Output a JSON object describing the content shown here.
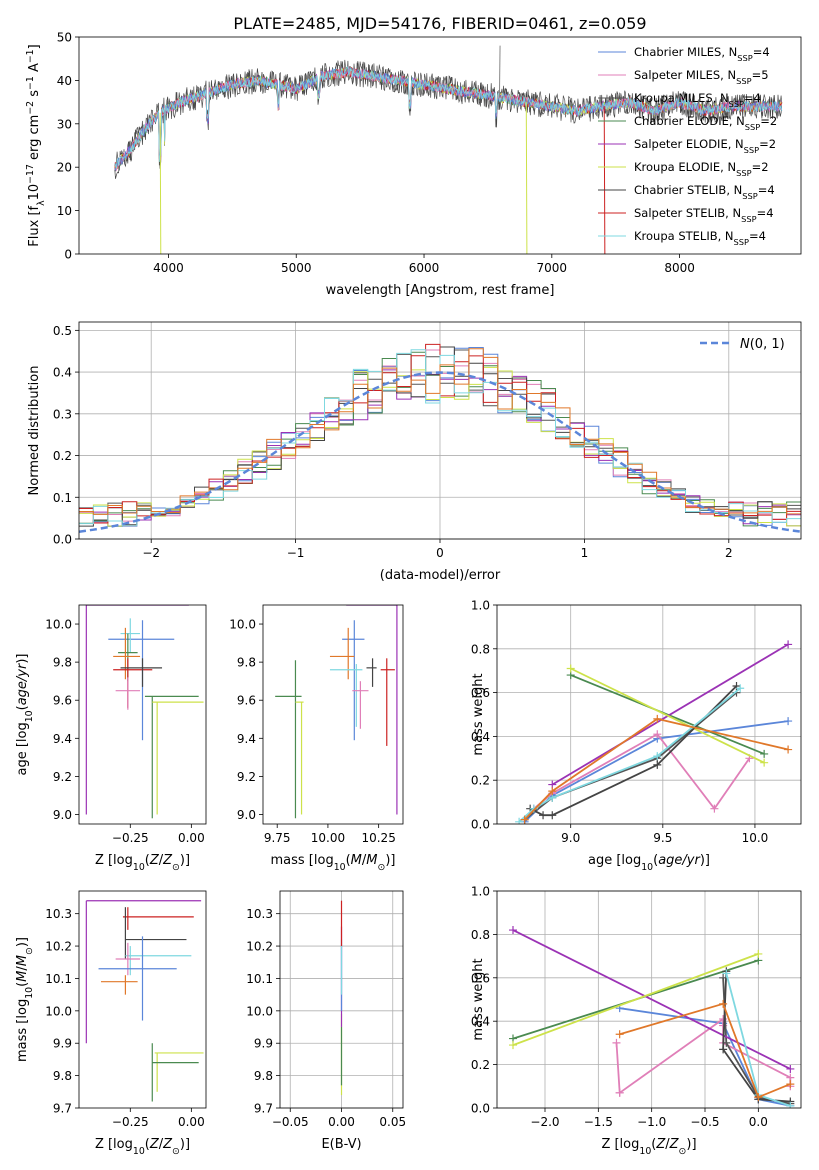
{
  "figure": {
    "title": "PLATE=2485, MJD=54176, FIBERID=0461, z=0.059"
  },
  "colors": {
    "Chabrier MILES": "#5b86d9",
    "Salpeter MILES": "#e07fb8",
    "Kroupa MILES": "#555555",
    "Chabrier ELODIE": "#4a8a50",
    "Salpeter ELODIE": "#9b32b5",
    "Kroupa ELODIE": "#cde24a",
    "Chabrier STELIB": "#444444",
    "Salpeter STELIB": "#cc2222",
    "Kroupa STELIB": "#7fd8e0",
    "orange": "#e0782a"
  },
  "chart_data": [
    {
      "id": "spectrum",
      "type": "line",
      "xlabel": "wavelength [Angstrom, rest frame]",
      "ylabel": "Flux [f_λ 10^-17 erg cm^-2 s^-1 A^-1]",
      "xlim": [
        3300,
        8950
      ],
      "ylim": [
        0,
        50
      ],
      "xticks": [
        4000,
        5000,
        6000,
        7000,
        8000
      ],
      "yticks": [
        0,
        10,
        20,
        30,
        40,
        50
      ],
      "legend_position": "top-right",
      "legend": [
        "Chabrier MILES, N_SSP=4",
        "Salpeter MILES, N_SSP=5",
        "Kroupa MILES, N_SSP=4",
        "Chabrier ELODIE, N_SSP=2",
        "Salpeter ELODIE, N_SSP=2",
        "Kroupa ELODIE, N_SSP=2",
        "Chabrier STELIB, N_SSP=4",
        "Salpeter STELIB, N_SSP=4",
        "Kroupa STELIB, N_SSP=4"
      ],
      "anchors": {
        "x": [
          3580,
          3700,
          3850,
          3950,
          4100,
          4300,
          4500,
          4700,
          4860,
          5000,
          5200,
          5400,
          5600,
          5800,
          6000,
          6200,
          6400,
          6600,
          6800,
          7000,
          7200,
          7400,
          7600,
          7800,
          8000,
          8200,
          8400,
          8600,
          8800
        ],
        "y": [
          20,
          24,
          30,
          33,
          35,
          37,
          39,
          40,
          39,
          38,
          41,
          42,
          41,
          40,
          39,
          38,
          37,
          36,
          35,
          34,
          33,
          34,
          35,
          33,
          35,
          33,
          34,
          34,
          34
        ]
      },
      "spikes": [
        {
          "x": 3935,
          "y": 0
        },
        {
          "x": 6590,
          "y": 48
        },
        {
          "x": 6800,
          "y": 0
        },
        {
          "x": 7410,
          "y": 0
        }
      ]
    },
    {
      "id": "residuals",
      "type": "area",
      "xlabel": "(data-model)/error",
      "ylabel": "Normed distribution",
      "xlim": [
        -2.5,
        2.5
      ],
      "ylim": [
        0,
        0.52
      ],
      "xticks": [
        -2,
        -1,
        0,
        1,
        2
      ],
      "yticks": [
        0.0,
        0.1,
        0.2,
        0.3,
        0.4,
        0.5
      ],
      "bin_width": 0.1,
      "gaussian_label": "N(0, 1)",
      "legend_position": "top-right"
    },
    {
      "id": "age_vs_Z",
      "type": "scatter",
      "xlabel": "Z [log10(Z/Z⊙)]",
      "ylabel": "age [log10(age/yr)]",
      "xlim": [
        -0.46,
        0.06
      ],
      "ylim": [
        8.95,
        10.1
      ],
      "xticks": [
        -0.25,
        0.0
      ],
      "yticks": [
        9.0,
        9.2,
        9.4,
        9.6,
        9.8,
        10.0
      ],
      "points": [
        {
          "model": "Chabrier MILES",
          "x": -0.2,
          "y": 9.92,
          "xerr": [
            0.14,
            0.13
          ],
          "yerr": [
            0.53,
            0.1
          ]
        },
        {
          "model": "Kroupa STELIB",
          "x": -0.25,
          "y": 9.95,
          "xerr": [
            0.04,
            0.04
          ],
          "yerr": [
            0.1,
            0.08
          ]
        },
        {
          "model": "Chabrier ELODIE",
          "x": -0.26,
          "y": 9.85,
          "xerr": [
            0.04,
            0.04
          ],
          "yerr": [
            0.15,
            0.1
          ]
        },
        {
          "model": "orange",
          "x": -0.27,
          "y": 9.83,
          "xerr": [
            0.05,
            0.06
          ],
          "yerr": [
            0.12,
            0.15
          ]
        },
        {
          "model": "Salpeter STELIB",
          "x": -0.26,
          "y": 9.76,
          "xerr": [
            0.06,
            0.1
          ],
          "yerr": [
            0.2,
            0.06
          ]
        },
        {
          "model": "Chabrier STELIB",
          "x": -0.2,
          "y": 9.77,
          "xerr": [
            0.09,
            0.08
          ],
          "yerr": [
            0.1,
            0.05
          ]
        },
        {
          "model": "Salpeter MILES",
          "x": -0.26,
          "y": 9.65,
          "xerr": [
            0.05,
            0.05
          ],
          "yerr": [
            0.1,
            0.07
          ]
        },
        {
          "model": "Salpeter ELODIE",
          "x": -0.43,
          "y": 10.1,
          "xerr": [
            0.0,
            0.42
          ],
          "yerr": [
            1.1,
            0.0
          ]
        },
        {
          "model": "Chabrier ELODIE",
          "x": -0.16,
          "y": 9.62,
          "xerr": [
            0.03,
            0.19
          ],
          "yerr": [
            0.64,
            0.0
          ]
        },
        {
          "model": "Kroupa ELODIE",
          "x": -0.14,
          "y": 9.59,
          "xerr": [
            0.02,
            0.19
          ],
          "yerr": [
            0.59,
            0.0
          ]
        }
      ]
    },
    {
      "id": "age_vs_mass",
      "type": "scatter",
      "xlabel": "mass [log10(M/M⊙)]",
      "ylabel": "",
      "xlim": [
        9.68,
        10.37
      ],
      "ylim": [
        8.95,
        10.1
      ],
      "xticks": [
        9.75,
        10.0,
        10.25
      ],
      "yticks": [
        9.0,
        9.2,
        9.4,
        9.6,
        9.8,
        10.0
      ],
      "points": [
        {
          "model": "Chabrier MILES",
          "x": 10.13,
          "y": 9.92,
          "xerr": [
            0.06,
            0.05
          ],
          "yerr": [
            0.53,
            0.1
          ]
        },
        {
          "model": "orange",
          "x": 10.1,
          "y": 9.83,
          "xerr": [
            0.09,
            0.03
          ],
          "yerr": [
            0.12,
            0.15
          ]
        },
        {
          "model": "Chabrier STELIB",
          "x": 10.22,
          "y": 9.77,
          "xerr": [
            0.03,
            0.02
          ],
          "yerr": [
            0.1,
            0.05
          ]
        },
        {
          "model": "Kroupa STELIB",
          "x": 10.14,
          "y": 9.76,
          "xerr": [
            0.13,
            0.03
          ],
          "yerr": [
            0.3,
            0.03
          ]
        },
        {
          "model": "Salpeter STELIB",
          "x": 10.29,
          "y": 9.76,
          "xerr": [
            0.03,
            0.04
          ],
          "yerr": [
            0.4,
            0.06
          ]
        },
        {
          "model": "Salpeter MILES",
          "x": 10.16,
          "y": 9.65,
          "xerr": [
            0.04,
            0.04
          ],
          "yerr": [
            0.2,
            0.05
          ]
        },
        {
          "model": "Salpeter ELODIE",
          "x": 10.34,
          "y": 10.1,
          "xerr": [
            0.25,
            0.0
          ],
          "yerr": [
            1.1,
            0.0
          ]
        },
        {
          "model": "Chabrier ELODIE",
          "x": 9.84,
          "y": 9.62,
          "xerr": [
            0.1,
            0.03
          ],
          "yerr": [
            0.64,
            0.19
          ]
        },
        {
          "model": "Kroupa ELODIE",
          "x": 9.87,
          "y": 9.59,
          "xerr": [
            0.03,
            0.01
          ],
          "yerr": [
            0.59,
            0.0
          ]
        }
      ]
    },
    {
      "id": "massweight_vs_age",
      "type": "line",
      "xlabel": "age [log10(age/yr)]",
      "ylabel": "mass weight",
      "xlim": [
        8.6,
        10.25
      ],
      "ylim": [
        0.0,
        1.0
      ],
      "xticks": [
        9.0,
        9.5,
        10.0
      ],
      "yticks": [
        0.0,
        0.2,
        0.4,
        0.6,
        0.8,
        1.0
      ],
      "series": [
        {
          "model": "Chabrier MILES",
          "x": [
            8.75,
            8.9,
            9.47,
            10.18
          ],
          "y": [
            0.01,
            0.13,
            0.39,
            0.47
          ]
        },
        {
          "model": "Salpeter MILES",
          "x": [
            8.8,
            8.9,
            9.47,
            9.78,
            9.97
          ],
          "y": [
            0.07,
            0.14,
            0.41,
            0.07,
            0.3
          ]
        },
        {
          "model": "Kroupa MILES",
          "x": [
            8.75,
            8.9,
            9.47,
            9.9
          ],
          "y": [
            0.02,
            0.12,
            0.3,
            0.6
          ]
        },
        {
          "model": "Chabrier ELODIE",
          "x": [
            9.0,
            10.05
          ],
          "y": [
            0.68,
            0.32
          ]
        },
        {
          "model": "Salpeter ELODIE",
          "x": [
            8.9,
            10.18
          ],
          "y": [
            0.18,
            0.82
          ]
        },
        {
          "model": "Kroupa ELODIE",
          "x": [
            9.0,
            10.05
          ],
          "y": [
            0.71,
            0.28
          ]
        },
        {
          "model": "Chabrier STELIB",
          "x": [
            8.78,
            8.85,
            8.9,
            9.47,
            9.9
          ],
          "y": [
            0.07,
            0.04,
            0.04,
            0.27,
            0.63
          ]
        },
        {
          "model": "Kroupa STELIB",
          "x": [
            8.72,
            8.8,
            8.9,
            9.47,
            9.92
          ],
          "y": [
            0.01,
            0.07,
            0.12,
            0.31,
            0.62
          ]
        },
        {
          "model": "orange",
          "x": [
            8.75,
            8.9,
            9.47,
            10.18
          ],
          "y": [
            0.02,
            0.15,
            0.48,
            0.34
          ]
        }
      ]
    },
    {
      "id": "mass_vs_Z",
      "type": "scatter",
      "xlabel": "Z [log10(Z/Z⊙)]",
      "ylabel": "mass [log10(M/M⊙)]",
      "xlim": [
        -0.46,
        0.06
      ],
      "ylim": [
        9.7,
        10.37
      ],
      "xticks": [
        -0.25,
        0.0
      ],
      "yticks": [
        9.7,
        9.8,
        9.9,
        10.0,
        10.1,
        10.2,
        10.3
      ],
      "points": [
        {
          "model": "Salpeter STELIB",
          "x": -0.26,
          "y": 10.29,
          "xerr": [
            0.02,
            0.27
          ],
          "yerr": [
            0.04,
            0.03
          ]
        },
        {
          "model": "Chabrier STELIB",
          "x": -0.27,
          "y": 10.22,
          "xerr": [
            0.0,
            0.25
          ],
          "yerr": [
            0.06,
            0.1
          ]
        },
        {
          "model": "Kroupa STELIB",
          "x": -0.25,
          "y": 10.17,
          "xerr": [
            0.02,
            0.25
          ],
          "yerr": [
            0.06,
            0.03
          ]
        },
        {
          "model": "Salpeter MILES",
          "x": -0.26,
          "y": 10.16,
          "xerr": [
            0.05,
            0.05
          ],
          "yerr": [
            0.05,
            0.05
          ]
        },
        {
          "model": "Chabrier MILES",
          "x": -0.2,
          "y": 10.13,
          "xerr": [
            0.18,
            0.14
          ],
          "yerr": [
            0.16,
            0.1
          ]
        },
        {
          "model": "orange",
          "x": -0.27,
          "y": 10.09,
          "xerr": [
            0.1,
            0.05
          ],
          "yerr": [
            0.04,
            0.02
          ]
        },
        {
          "model": "Salpeter ELODIE",
          "x": -0.43,
          "y": 10.34,
          "xerr": [
            0.0,
            0.47
          ],
          "yerr": [
            0.44,
            0.0
          ]
        },
        {
          "model": "Kroupa ELODIE",
          "x": -0.14,
          "y": 9.87,
          "xerr": [
            0.01,
            0.19
          ],
          "yerr": [
            0.12,
            0.0
          ]
        },
        {
          "model": "Chabrier ELODIE",
          "x": -0.16,
          "y": 9.84,
          "xerr": [
            0.0,
            0.19
          ],
          "yerr": [
            0.12,
            0.06
          ]
        }
      ]
    },
    {
      "id": "mass_vs_EBV",
      "type": "scatter",
      "xlabel": "E(B-V)",
      "ylabel": "",
      "xlim": [
        -0.06,
        0.06
      ],
      "ylim": [
        9.7,
        10.37
      ],
      "xticks": [
        -0.05,
        0.0,
        0.05
      ],
      "yticks": [
        9.7,
        9.8,
        9.9,
        10.0,
        10.1,
        10.2,
        10.3
      ],
      "segments": [
        {
          "model": "Kroupa ELODIE",
          "x": 0.0,
          "y": [
            9.74,
            9.99
          ]
        },
        {
          "model": "Chabrier ELODIE",
          "x": 0.0,
          "y": [
            9.77,
            9.95
          ]
        },
        {
          "model": "Salpeter ELODIE",
          "x": 0.0,
          "y": [
            9.95,
            10.26
          ]
        },
        {
          "model": "Chabrier MILES",
          "x": 0.0,
          "y": [
            10.0,
            10.2
          ]
        },
        {
          "model": "Kroupa STELIB",
          "x": 0.0,
          "y": [
            10.05,
            10.22
          ]
        },
        {
          "model": "Salpeter STELIB",
          "x": 0.0,
          "y": [
            10.2,
            10.34
          ]
        }
      ]
    },
    {
      "id": "massweight_vs_Z",
      "type": "line",
      "xlabel": "Z [log10(Z/Z⊙)]",
      "ylabel": "mass weight",
      "xlim": [
        -2.45,
        0.4
      ],
      "ylim": [
        0.0,
        1.0
      ],
      "xticks": [
        -2.0,
        -1.5,
        -1.0,
        -0.5,
        0.0
      ],
      "yticks": [
        0.0,
        0.2,
        0.4,
        0.6,
        0.8,
        1.0
      ],
      "series": [
        {
          "model": "Chabrier MILES",
          "x": [
            -1.3,
            -0.33,
            0.0,
            0.3
          ],
          "y": [
            0.46,
            0.39,
            0.04,
            0.01
          ]
        },
        {
          "model": "Salpeter MILES",
          "x": [
            -1.3,
            -0.33,
            -0.33,
            -0.33,
            0.3,
            0.3
          ],
          "y": [
            0.07,
            0.41,
            0.38,
            0.3,
            0.14,
            0.1
          ]
        },
        {
          "model": "Salpeter MILES",
          "x": [
            -1.33,
            -1.3
          ],
          "y": [
            0.3,
            0.07
          ]
        },
        {
          "model": "Kroupa MILES",
          "x": [
            -0.33,
            -0.3,
            0.0,
            0.3
          ],
          "y": [
            0.6,
            0.3,
            0.05,
            0.02
          ]
        },
        {
          "model": "Chabrier ELODIE",
          "x": [
            -2.3,
            0.0
          ],
          "y": [
            0.32,
            0.68
          ]
        },
        {
          "model": "Salpeter ELODIE",
          "x": [
            -2.3,
            0.3
          ],
          "y": [
            0.82,
            0.18
          ]
        },
        {
          "model": "Kroupa ELODIE",
          "x": [
            -2.3,
            0.0
          ],
          "y": [
            0.29,
            0.71
          ]
        },
        {
          "model": "Chabrier STELIB",
          "x": [
            -0.3,
            -0.33,
            0.0,
            0.3
          ],
          "y": [
            0.63,
            0.27,
            0.04,
            0.03
          ]
        },
        {
          "model": "Kroupa STELIB",
          "x": [
            -0.3,
            0.0,
            0.3
          ],
          "y": [
            0.62,
            0.06,
            0.01
          ]
        },
        {
          "model": "orange",
          "x": [
            -1.3,
            -0.33,
            0.0,
            0.3
          ],
          "y": [
            0.34,
            0.48,
            0.05,
            0.11
          ]
        }
      ]
    }
  ]
}
